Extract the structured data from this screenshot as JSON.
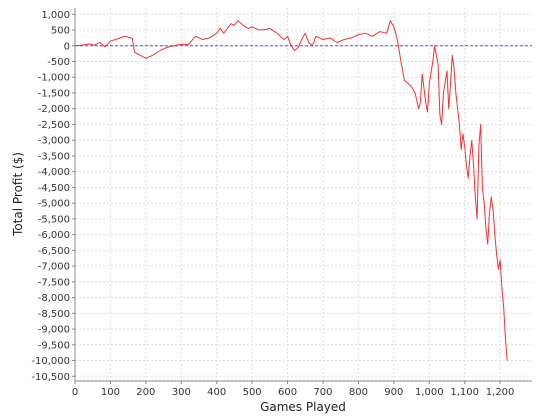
{
  "chart_data": {
    "type": "line",
    "title": "",
    "xlabel": "Games Played",
    "ylabel": "Total Profit ($)",
    "xlim": [
      0,
      1290
    ],
    "ylim": [
      -10650,
      1200
    ],
    "grid": true,
    "legend": "none",
    "x_ticks": [
      0,
      100,
      200,
      300,
      400,
      500,
      600,
      700,
      800,
      900,
      1000,
      1100,
      1200
    ],
    "x_tick_labels": [
      "0",
      "100",
      "200",
      "300",
      "400",
      "500",
      "600",
      "700",
      "800",
      "900",
      "1,000",
      "1,100",
      "1,200"
    ],
    "y_ticks": [
      1000,
      500,
      0,
      -500,
      -1000,
      -1500,
      -2000,
      -2500,
      -3000,
      -3500,
      -4000,
      -4500,
      -5000,
      -5500,
      -6000,
      -6500,
      -7000,
      -7500,
      -8000,
      -8500,
      -9000,
      -9500,
      -10000,
      -10500
    ],
    "y_tick_labels": [
      "1,000",
      "500",
      "0",
      "-500",
      "-1,000",
      "-1,500",
      "-2,000",
      "-2,500",
      "-3,000",
      "-3,500",
      "-4,000",
      "-4,500",
      "-5,000",
      "-5,500",
      "-6,000",
      "-6,500",
      "-7,000",
      "-7,500",
      "-8,000",
      "-8,500",
      "-9,000",
      "-9,500",
      "-10,000",
      "-10,500"
    ],
    "reference_line": {
      "y": 0,
      "color": "#5555cc",
      "style": "dashed"
    },
    "series": [
      {
        "color": "#ee3333",
        "points": [
          [
            0,
            0
          ],
          [
            20,
            20
          ],
          [
            40,
            60
          ],
          [
            55,
            20
          ],
          [
            70,
            110
          ],
          [
            85,
            -40
          ],
          [
            100,
            150
          ],
          [
            120,
            220
          ],
          [
            140,
            300
          ],
          [
            155,
            260
          ],
          [
            162,
            230
          ],
          [
            168,
            -200
          ],
          [
            180,
            -280
          ],
          [
            200,
            -400
          ],
          [
            220,
            -300
          ],
          [
            240,
            -150
          ],
          [
            260,
            -50
          ],
          [
            280,
            0
          ],
          [
            300,
            50
          ],
          [
            320,
            40
          ],
          [
            340,
            300
          ],
          [
            360,
            200
          ],
          [
            380,
            250
          ],
          [
            400,
            400
          ],
          [
            410,
            550
          ],
          [
            420,
            400
          ],
          [
            440,
            700
          ],
          [
            450,
            650
          ],
          [
            460,
            800
          ],
          [
            470,
            700
          ],
          [
            480,
            600
          ],
          [
            490,
            550
          ],
          [
            500,
            600
          ],
          [
            520,
            500
          ],
          [
            540,
            520
          ],
          [
            550,
            550
          ],
          [
            570,
            400
          ],
          [
            580,
            300
          ],
          [
            590,
            200
          ],
          [
            600,
            300
          ],
          [
            610,
            0
          ],
          [
            620,
            -150
          ],
          [
            630,
            -50
          ],
          [
            640,
            200
          ],
          [
            650,
            400
          ],
          [
            660,
            100
          ],
          [
            670,
            0
          ],
          [
            680,
            300
          ],
          [
            690,
            250
          ],
          [
            700,
            200
          ],
          [
            720,
            250
          ],
          [
            740,
            100
          ],
          [
            760,
            200
          ],
          [
            780,
            250
          ],
          [
            800,
            350
          ],
          [
            820,
            400
          ],
          [
            840,
            300
          ],
          [
            860,
            450
          ],
          [
            880,
            400
          ],
          [
            890,
            800
          ],
          [
            900,
            600
          ],
          [
            910,
            200
          ],
          [
            920,
            -500
          ],
          [
            930,
            -1100
          ],
          [
            940,
            -1200
          ],
          [
            950,
            -1300
          ],
          [
            960,
            -1500
          ],
          [
            970,
            -2000
          ],
          [
            975,
            -1800
          ],
          [
            980,
            -900
          ],
          [
            990,
            -1800
          ],
          [
            995,
            -2100
          ],
          [
            1000,
            -1200
          ],
          [
            1010,
            -500
          ],
          [
            1015,
            0
          ],
          [
            1025,
            -600
          ],
          [
            1030,
            -2200
          ],
          [
            1035,
            -2500
          ],
          [
            1040,
            -1500
          ],
          [
            1050,
            -800
          ],
          [
            1055,
            -2000
          ],
          [
            1060,
            -1200
          ],
          [
            1065,
            -300
          ],
          [
            1070,
            -700
          ],
          [
            1075,
            -1500
          ],
          [
            1080,
            -2000
          ],
          [
            1085,
            -2500
          ],
          [
            1090,
            -3300
          ],
          [
            1095,
            -2800
          ],
          [
            1100,
            -3200
          ],
          [
            1105,
            -3800
          ],
          [
            1110,
            -4200
          ],
          [
            1115,
            -3500
          ],
          [
            1120,
            -3000
          ],
          [
            1125,
            -3800
          ],
          [
            1130,
            -4800
          ],
          [
            1135,
            -5500
          ],
          [
            1140,
            -3200
          ],
          [
            1145,
            -2500
          ],
          [
            1150,
            -4500
          ],
          [
            1155,
            -5000
          ],
          [
            1160,
            -5800
          ],
          [
            1165,
            -6300
          ],
          [
            1170,
            -5300
          ],
          [
            1175,
            -4800
          ],
          [
            1180,
            -5200
          ],
          [
            1185,
            -6000
          ],
          [
            1190,
            -6600
          ],
          [
            1195,
            -7100
          ],
          [
            1200,
            -6800
          ],
          [
            1205,
            -7700
          ],
          [
            1210,
            -8300
          ],
          [
            1215,
            -9300
          ],
          [
            1220,
            -10000
          ]
        ]
      }
    ]
  }
}
